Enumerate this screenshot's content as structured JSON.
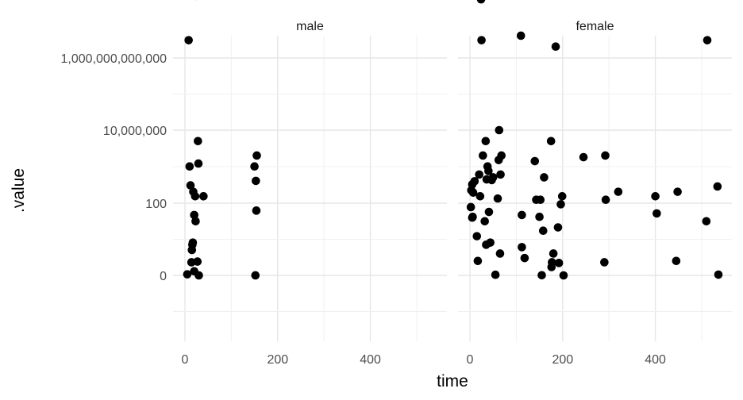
{
  "chart_data": {
    "type": "scatter",
    "facets": [
      "male",
      "female"
    ],
    "xlabel": "time",
    "ylabel": ".value",
    "x_ticks": [
      0,
      200,
      400
    ],
    "x_tick_labels": [
      "0",
      "200",
      "400"
    ],
    "xlim": [
      -10,
      550
    ],
    "y_scale": "log10(1 + y)",
    "y_ticks": [
      0,
      100,
      10000000,
      1000000000000
    ],
    "y_tick_labels": [
      "0",
      "100",
      "10,000,000",
      "1,000,000,000,000"
    ],
    "grid": true,
    "legend": "none",
    "point_color": "#000000",
    "series": [
      {
        "facet": "male",
        "x": [
          2,
          5,
          8,
          10,
          12,
          14,
          15,
          16,
          17,
          18,
          20,
          20,
          22,
          23,
          25,
          27,
          28,
          29,
          30,
          40,
          150,
          152,
          153,
          154,
          155
        ],
        "y": [
          200000000000,
          0.07,
          3000000,
          1000,
          300,
          1.3,
          4,
          6,
          7,
          200,
          45,
          0.3,
          150,
          30,
          50000000,
          1.4,
          5000,
          1200,
          0.0005,
          150,
          1000,
          0.003,
          400,
          60,
          2000
        ]
      },
      {
        "facet": "female",
        "x": [
          2,
          3,
          5,
          5,
          6,
          7,
          10,
          13,
          15,
          17,
          20,
          22,
          24,
          25,
          28,
          30,
          32,
          34,
          35,
          36,
          38,
          40,
          41,
          44,
          47,
          50,
          52,
          55,
          56,
          58,
          60,
          62,
          63,
          65,
          66,
          68,
          110,
          112,
          112,
          118,
          140,
          143,
          150,
          152,
          155,
          158,
          160,
          175,
          176,
          177,
          180,
          185,
          190,
          192,
          196,
          199,
          202,
          245,
          290,
          292,
          293,
          320,
          400,
          403,
          445,
          448,
          510,
          512,
          534,
          536
        ],
        "y": [
          75,
          220,
          320,
          38,
          40,
          190,
          390,
          1200000000000,
          11,
          1.5,
          600,
          150,
          40000000,
          3000000,
          2000,
          400000000000,
          30,
          5000,
          6,
          440,
          1000,
          750,
          55,
          7,
          420,
          500,
          8000000000,
          0.04,
          1900000000,
          180000000,
          130,
          1500,
          10000,
          3,
          600,
          2000,
          4000000,
          45,
          5,
          2,
          1400,
          120,
          40,
          120,
          0.01,
          16,
          500,
          5000,
          0.7,
          1.3,
          3,
          2000000,
          20,
          1.2,
          90,
          150,
          1e-06,
          1800,
          1.3,
          2000,
          120,
          200,
          150,
          50,
          1.5,
          200,
          30,
          3000000,
          280,
          0.05
        ],
        "note": ""
      }
    ]
  }
}
